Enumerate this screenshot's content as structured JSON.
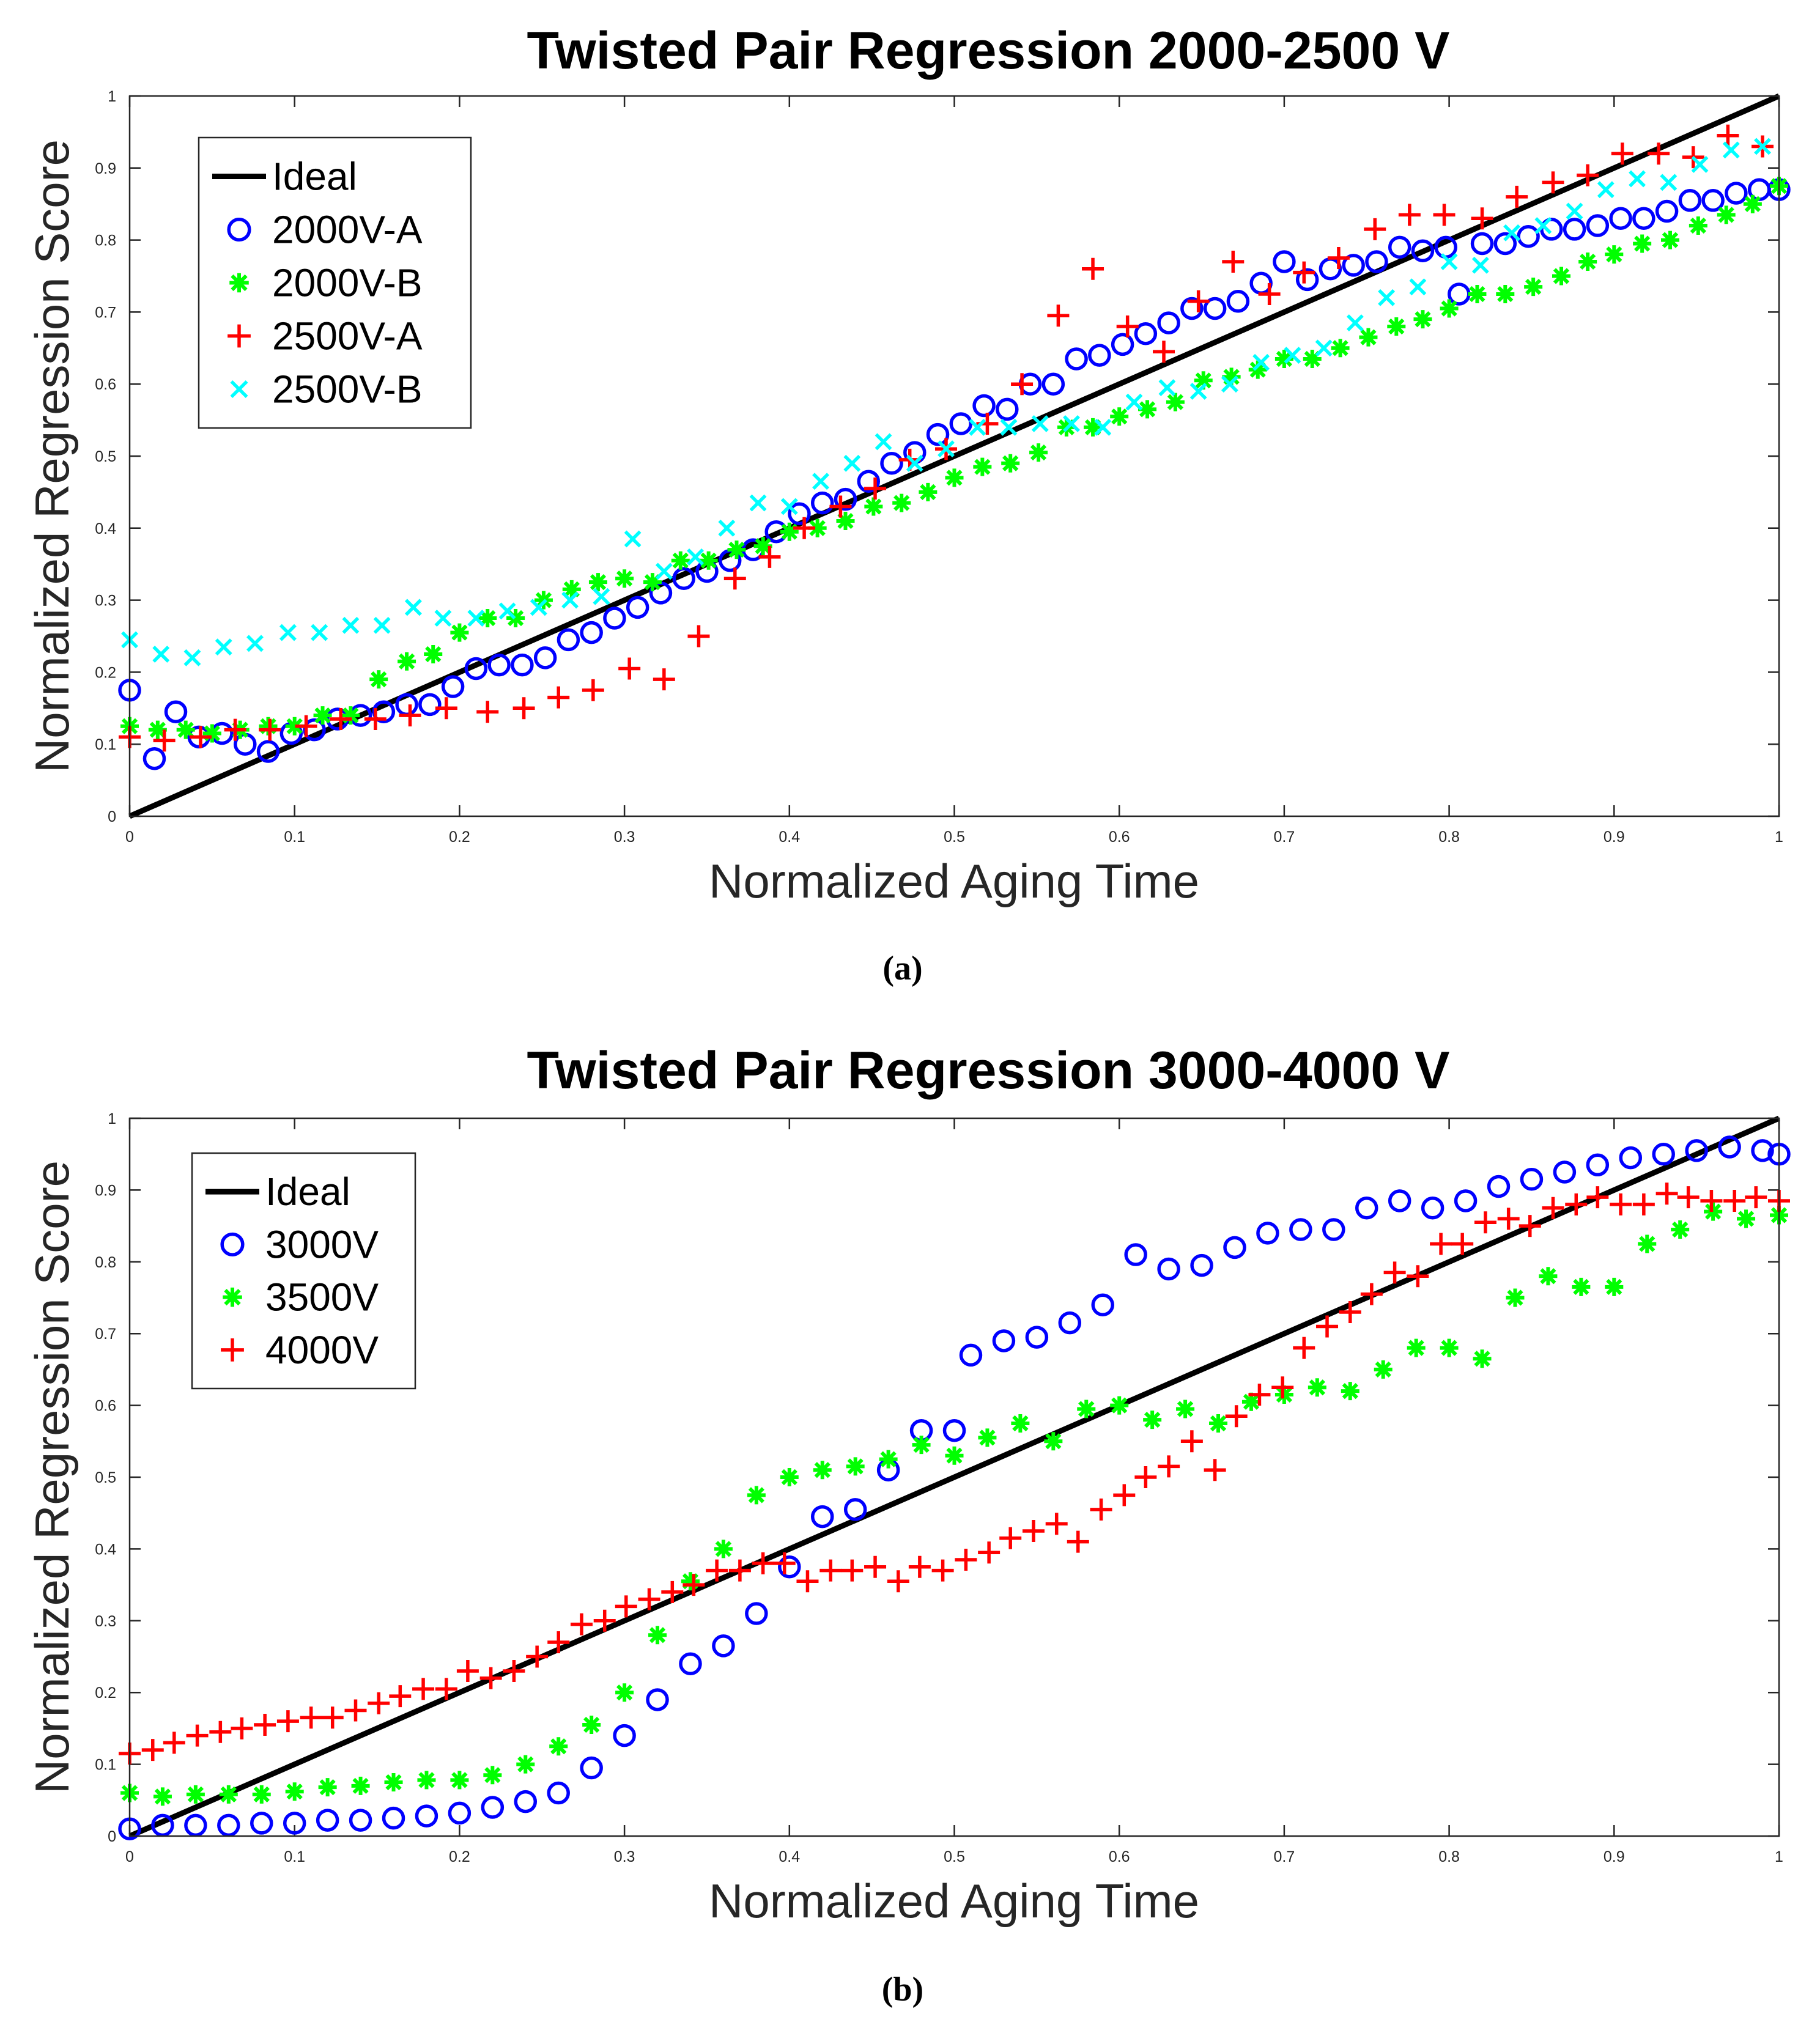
{
  "chart_data": [
    {
      "type": "scatter",
      "title": "Twisted Pair Regression 2000-2500 V",
      "xlabel": "Normalized Aging Time",
      "ylabel": "Normalized Regression Score",
      "xlim": [
        0,
        1
      ],
      "ylim": [
        0,
        1
      ],
      "xticks": [
        "0",
        "0.1",
        "0.2",
        "0.3",
        "0.4",
        "0.5",
        "0.6",
        "0.7",
        "0.8",
        "0.9",
        "1"
      ],
      "yticks": [
        "0",
        "0.1",
        "0.2",
        "0.3",
        "0.4",
        "0.5",
        "0.6",
        "0.7",
        "0.8",
        "0.9",
        "1"
      ],
      "grid": false,
      "legend_position": "top-left",
      "caption": "(a)",
      "series": [
        {
          "name": "Ideal",
          "marker": "line",
          "color": "#000000",
          "x": [
            0,
            1
          ],
          "y": [
            0,
            1
          ]
        },
        {
          "name": "2000V-A",
          "marker": "circle",
          "color": "#0000ff",
          "x": [
            0,
            0.015,
            0.028,
            0.042,
            0.056,
            0.07,
            0.084,
            0.098,
            0.112,
            0.126,
            0.14,
            0.154,
            0.168,
            0.182,
            0.196,
            0.21,
            0.224,
            0.238,
            0.252,
            0.266,
            0.28,
            0.294,
            0.308,
            0.322,
            0.336,
            0.35,
            0.364,
            0.378,
            0.392,
            0.406,
            0.42,
            0.434,
            0.448,
            0.462,
            0.476,
            0.49,
            0.504,
            0.518,
            0.532,
            0.546,
            0.56,
            0.574,
            0.588,
            0.602,
            0.616,
            0.63,
            0.644,
            0.658,
            0.672,
            0.686,
            0.7,
            0.714,
            0.728,
            0.742,
            0.756,
            0.77,
            0.784,
            0.798,
            0.806,
            0.82,
            0.834,
            0.848,
            0.862,
            0.876,
            0.89,
            0.904,
            0.918,
            0.932,
            0.946,
            0.96,
            0.974,
            0.988,
            1.0
          ],
          "y": [
            0.175,
            0.08,
            0.145,
            0.11,
            0.115,
            0.1,
            0.09,
            0.115,
            0.12,
            0.135,
            0.14,
            0.145,
            0.155,
            0.155,
            0.18,
            0.205,
            0.21,
            0.21,
            0.22,
            0.245,
            0.255,
            0.275,
            0.29,
            0.31,
            0.33,
            0.34,
            0.355,
            0.37,
            0.395,
            0.42,
            0.435,
            0.44,
            0.465,
            0.49,
            0.505,
            0.53,
            0.545,
            0.57,
            0.565,
            0.6,
            0.6,
            0.635,
            0.64,
            0.655,
            0.67,
            0.685,
            0.705,
            0.705,
            0.715,
            0.74,
            0.77,
            0.745,
            0.76,
            0.765,
            0.77,
            0.79,
            0.785,
            0.79,
            0.725,
            0.795,
            0.795,
            0.805,
            0.815,
            0.815,
            0.82,
            0.83,
            0.83,
            0.84,
            0.855,
            0.855,
            0.865,
            0.87,
            0.87
          ]
        },
        {
          "name": "2000V-B",
          "marker": "star",
          "color": "#00ff00",
          "x": [
            0,
            0.017,
            0.034,
            0.05,
            0.067,
            0.084,
            0.1,
            0.117,
            0.134,
            0.151,
            0.168,
            0.184,
            0.2,
            0.217,
            0.234,
            0.251,
            0.268,
            0.284,
            0.3,
            0.317,
            0.334,
            0.351,
            0.368,
            0.384,
            0.4,
            0.417,
            0.434,
            0.451,
            0.468,
            0.484,
            0.5,
            0.517,
            0.534,
            0.551,
            0.568,
            0.584,
            0.6,
            0.617,
            0.634,
            0.651,
            0.668,
            0.684,
            0.7,
            0.717,
            0.734,
            0.751,
            0.768,
            0.784,
            0.8,
            0.817,
            0.834,
            0.851,
            0.868,
            0.884,
            0.9,
            0.917,
            0.934,
            0.951,
            0.968,
            0.984,
            1.0
          ],
          "y": [
            0.125,
            0.12,
            0.12,
            0.115,
            0.12,
            0.125,
            0.125,
            0.14,
            0.14,
            0.19,
            0.215,
            0.225,
            0.255,
            0.275,
            0.275,
            0.3,
            0.315,
            0.325,
            0.33,
            0.325,
            0.355,
            0.355,
            0.37,
            0.375,
            0.395,
            0.4,
            0.41,
            0.43,
            0.435,
            0.45,
            0.47,
            0.485,
            0.49,
            0.505,
            0.54,
            0.54,
            0.555,
            0.565,
            0.575,
            0.605,
            0.61,
            0.62,
            0.635,
            0.635,
            0.65,
            0.665,
            0.68,
            0.69,
            0.705,
            0.725,
            0.725,
            0.735,
            0.75,
            0.77,
            0.78,
            0.795,
            0.8,
            0.82,
            0.835,
            0.85,
            0.875
          ]
        },
        {
          "name": "2500V-A",
          "marker": "plus",
          "color": "#ff0000",
          "x": [
            0,
            0.021,
            0.043,
            0.064,
            0.085,
            0.107,
            0.128,
            0.149,
            0.17,
            0.192,
            0.217,
            0.239,
            0.26,
            0.281,
            0.303,
            0.324,
            0.345,
            0.367,
            0.388,
            0.409,
            0.431,
            0.452,
            0.473,
            0.495,
            0.52,
            0.541,
            0.563,
            0.584,
            0.605,
            0.627,
            0.648,
            0.669,
            0.691,
            0.712,
            0.733,
            0.755,
            0.776,
            0.797,
            0.82,
            0.841,
            0.863,
            0.884,
            0.905,
            0.927,
            0.948,
            0.969,
            0.99
          ],
          "y": [
            0.11,
            0.105,
            0.11,
            0.12,
            0.12,
            0.125,
            0.135,
            0.135,
            0.14,
            0.15,
            0.145,
            0.15,
            0.165,
            0.175,
            0.205,
            0.19,
            0.25,
            0.33,
            0.36,
            0.4,
            0.43,
            0.455,
            0.495,
            0.51,
            0.545,
            0.6,
            0.695,
            0.76,
            0.68,
            0.645,
            0.715,
            0.77,
            0.725,
            0.755,
            0.775,
            0.815,
            0.835,
            0.835,
            0.83,
            0.86,
            0.88,
            0.89,
            0.92,
            0.92,
            0.915,
            0.945,
            0.93
          ]
        },
        {
          "name": "2500V-B",
          "marker": "x",
          "color": "#00ffff",
          "x": [
            0,
            0.019,
            0.038,
            0.057,
            0.076,
            0.096,
            0.115,
            0.134,
            0.153,
            0.172,
            0.19,
            0.21,
            0.229,
            0.248,
            0.267,
            0.286,
            0.305,
            0.324,
            0.343,
            0.362,
            0.381,
            0.4,
            0.419,
            0.438,
            0.457,
            0.476,
            0.495,
            0.514,
            0.533,
            0.552,
            0.571,
            0.59,
            0.609,
            0.629,
            0.648,
            0.667,
            0.686,
            0.705,
            0.724,
            0.743,
            0.762,
            0.781,
            0.8,
            0.819,
            0.838,
            0.857,
            0.876,
            0.895,
            0.914,
            0.933,
            0.952,
            0.971,
            0.99
          ],
          "y": [
            0.245,
            0.225,
            0.22,
            0.235,
            0.24,
            0.255,
            0.255,
            0.265,
            0.265,
            0.29,
            0.275,
            0.275,
            0.285,
            0.29,
            0.3,
            0.305,
            0.385,
            0.34,
            0.36,
            0.4,
            0.435,
            0.43,
            0.465,
            0.49,
            0.52,
            0.49,
            0.51,
            0.54,
            0.54,
            0.545,
            0.545,
            0.54,
            0.575,
            0.595,
            0.59,
            0.6,
            0.63,
            0.64,
            0.65,
            0.685,
            0.72,
            0.735,
            0.77,
            0.765,
            0.81,
            0.82,
            0.84,
            0.87,
            0.885,
            0.88,
            0.905,
            0.925,
            0.93
          ]
        }
      ]
    },
    {
      "type": "scatter",
      "title": "Twisted Pair Regression 3000-4000 V",
      "xlabel": "Normalized Aging Time",
      "ylabel": "Normalized Regression Score",
      "xlim": [
        0,
        1
      ],
      "ylim": [
        0,
        1
      ],
      "xticks": [
        "0",
        "0.1",
        "0.2",
        "0.3",
        "0.4",
        "0.5",
        "0.6",
        "0.7",
        "0.8",
        "0.9",
        "1"
      ],
      "yticks": [
        "0",
        "0.1",
        "0.2",
        "0.3",
        "0.4",
        "0.5",
        "0.6",
        "0.7",
        "0.8",
        "0.9",
        "1"
      ],
      "grid": false,
      "legend_position": "top-left",
      "caption": "(b)",
      "series": [
        {
          "name": "Ideal",
          "marker": "line",
          "color": "#000000",
          "x": [
            0,
            1
          ],
          "y": [
            0,
            1
          ]
        },
        {
          "name": "3000V",
          "marker": "circle",
          "color": "#0000ff",
          "x": [
            0,
            0.02,
            0.04,
            0.06,
            0.08,
            0.1,
            0.12,
            0.14,
            0.16,
            0.18,
            0.2,
            0.22,
            0.24,
            0.26,
            0.28,
            0.3,
            0.32,
            0.34,
            0.36,
            0.38,
            0.4,
            0.42,
            0.44,
            0.46,
            0.48,
            0.5,
            0.51,
            0.53,
            0.55,
            0.57,
            0.59,
            0.61,
            0.63,
            0.65,
            0.67,
            0.69,
            0.71,
            0.73,
            0.75,
            0.77,
            0.79,
            0.81,
            0.83,
            0.85,
            0.87,
            0.89,
            0.91,
            0.93,
            0.95,
            0.97,
            0.99,
            1.0
          ],
          "y": [
            0.01,
            0.015,
            0.015,
            0.015,
            0.018,
            0.018,
            0.022,
            0.022,
            0.025,
            0.028,
            0.032,
            0.04,
            0.048,
            0.06,
            0.095,
            0.14,
            0.19,
            0.24,
            0.265,
            0.31,
            0.375,
            0.445,
            0.455,
            0.51,
            0.565,
            0.565,
            0.67,
            0.69,
            0.695,
            0.715,
            0.74,
            0.81,
            0.79,
            0.795,
            0.82,
            0.84,
            0.845,
            0.845,
            0.875,
            0.885,
            0.875,
            0.885,
            0.905,
            0.915,
            0.925,
            0.935,
            0.945,
            0.95,
            0.955,
            0.96,
            0.955,
            0.95
          ]
        },
        {
          "name": "3500V",
          "marker": "star",
          "color": "#00ff00",
          "x": [
            0,
            0.02,
            0.04,
            0.06,
            0.08,
            0.1,
            0.12,
            0.14,
            0.16,
            0.18,
            0.2,
            0.22,
            0.24,
            0.26,
            0.28,
            0.3,
            0.32,
            0.34,
            0.36,
            0.38,
            0.4,
            0.42,
            0.44,
            0.46,
            0.48,
            0.5,
            0.52,
            0.54,
            0.56,
            0.58,
            0.6,
            0.62,
            0.64,
            0.66,
            0.68,
            0.7,
            0.72,
            0.74,
            0.76,
            0.78,
            0.8,
            0.82,
            0.84,
            0.86,
            0.88,
            0.9,
            0.92,
            0.94,
            0.96,
            0.98,
            1.0
          ],
          "y": [
            0.06,
            0.055,
            0.058,
            0.058,
            0.058,
            0.062,
            0.068,
            0.07,
            0.075,
            0.078,
            0.078,
            0.085,
            0.1,
            0.125,
            0.155,
            0.2,
            0.28,
            0.355,
            0.4,
            0.475,
            0.5,
            0.51,
            0.515,
            0.525,
            0.545,
            0.53,
            0.555,
            0.575,
            0.55,
            0.595,
            0.6,
            0.58,
            0.595,
            0.575,
            0.605,
            0.615,
            0.625,
            0.62,
            0.65,
            0.68,
            0.68,
            0.665,
            0.75,
            0.78,
            0.765,
            0.765,
            0.825,
            0.845,
            0.87,
            0.86,
            0.865
          ]
        },
        {
          "name": "4000V",
          "marker": "plus",
          "color": "#ff0000",
          "x": [
            0,
            0.014,
            0.027,
            0.041,
            0.055,
            0.068,
            0.082,
            0.096,
            0.11,
            0.123,
            0.137,
            0.151,
            0.164,
            0.178,
            0.192,
            0.205,
            0.219,
            0.233,
            0.247,
            0.26,
            0.274,
            0.288,
            0.301,
            0.315,
            0.329,
            0.342,
            0.356,
            0.37,
            0.384,
            0.397,
            0.411,
            0.425,
            0.438,
            0.452,
            0.466,
            0.479,
            0.493,
            0.507,
            0.521,
            0.534,
            0.548,
            0.562,
            0.575,
            0.589,
            0.603,
            0.616,
            0.63,
            0.644,
            0.658,
            0.671,
            0.685,
            0.699,
            0.712,
            0.726,
            0.74,
            0.753,
            0.767,
            0.781,
            0.795,
            0.808,
            0.822,
            0.836,
            0.849,
            0.863,
            0.877,
            0.89,
            0.904,
            0.918,
            0.932,
            0.945,
            0.959,
            0.973,
            0.986,
            1.0
          ],
          "y": [
            0.115,
            0.12,
            0.13,
            0.14,
            0.145,
            0.15,
            0.155,
            0.16,
            0.165,
            0.165,
            0.175,
            0.185,
            0.195,
            0.205,
            0.205,
            0.23,
            0.22,
            0.23,
            0.25,
            0.27,
            0.295,
            0.3,
            0.32,
            0.33,
            0.34,
            0.35,
            0.37,
            0.37,
            0.38,
            0.38,
            0.355,
            0.37,
            0.37,
            0.375,
            0.355,
            0.375,
            0.37,
            0.385,
            0.395,
            0.415,
            0.425,
            0.435,
            0.41,
            0.455,
            0.475,
            0.5,
            0.515,
            0.55,
            0.51,
            0.585,
            0.615,
            0.625,
            0.68,
            0.71,
            0.73,
            0.755,
            0.785,
            0.78,
            0.825,
            0.825,
            0.855,
            0.86,
            0.85,
            0.875,
            0.88,
            0.89,
            0.88,
            0.88,
            0.895,
            0.89,
            0.885,
            0.885,
            0.89,
            0.885
          ]
        }
      ]
    }
  ]
}
